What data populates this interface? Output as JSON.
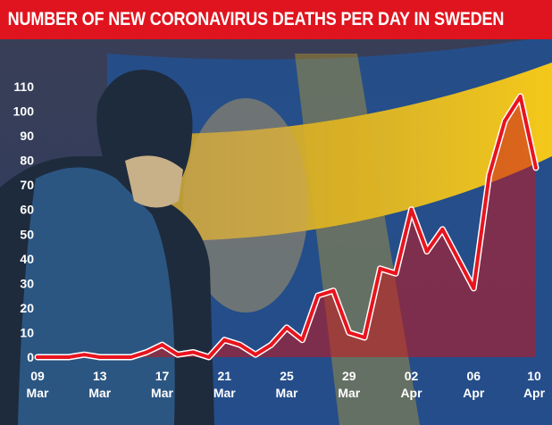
{
  "title": "NUMBER OF NEW CORONAVIRUS DEATHS PER DAY IN SWEDEN",
  "colors": {
    "title_bg": "#e0141e",
    "line": "#e8141e",
    "line_outline": "#ffffff",
    "area": "#c8151c",
    "flag_blue": "#1f4e8c",
    "flag_yellow": "#f2c418",
    "text": "#ffffff"
  },
  "chart_data": {
    "type": "area",
    "title": "NUMBER OF NEW CORONAVIRUS DEATHS PER DAY IN SWEDEN",
    "xlabel": "",
    "ylabel": "",
    "ylim": [
      0,
      110
    ],
    "yticks": [
      0,
      10,
      20,
      30,
      40,
      50,
      60,
      70,
      80,
      90,
      100,
      110
    ],
    "grid": false,
    "legend": "none",
    "x_tick_labels": [
      {
        "day": "09",
        "month": "Mar"
      },
      {
        "day": "13",
        "month": "Mar"
      },
      {
        "day": "17",
        "month": "Mar"
      },
      {
        "day": "21",
        "month": "Mar"
      },
      {
        "day": "25",
        "month": "Mar"
      },
      {
        "day": "29",
        "month": "Mar"
      },
      {
        "day": "02",
        "month": "Apr"
      },
      {
        "day": "06",
        "month": "Apr"
      },
      {
        "day": "10",
        "month": "Apr"
      }
    ],
    "x": [
      "09 Mar",
      "10 Mar",
      "11 Mar",
      "12 Mar",
      "13 Mar",
      "14 Mar",
      "15 Mar",
      "16 Mar",
      "17 Mar",
      "18 Mar",
      "19 Mar",
      "20 Mar",
      "21 Mar",
      "22 Mar",
      "23 Mar",
      "24 Mar",
      "25 Mar",
      "26 Mar",
      "27 Mar",
      "28 Mar",
      "29 Mar",
      "30 Mar",
      "31 Mar",
      "01 Apr",
      "02 Apr",
      "03 Apr",
      "04 Apr",
      "05 Apr",
      "06 Apr",
      "07 Apr",
      "08 Apr",
      "09 Apr",
      "10 Apr"
    ],
    "values": [
      0,
      0,
      0,
      1,
      0,
      0,
      0,
      2,
      5,
      1,
      2,
      0,
      7,
      5,
      1,
      5,
      12,
      7,
      25,
      27,
      10,
      8,
      36,
      34,
      60,
      43,
      52,
      40,
      28,
      74,
      96,
      106,
      77
    ]
  }
}
